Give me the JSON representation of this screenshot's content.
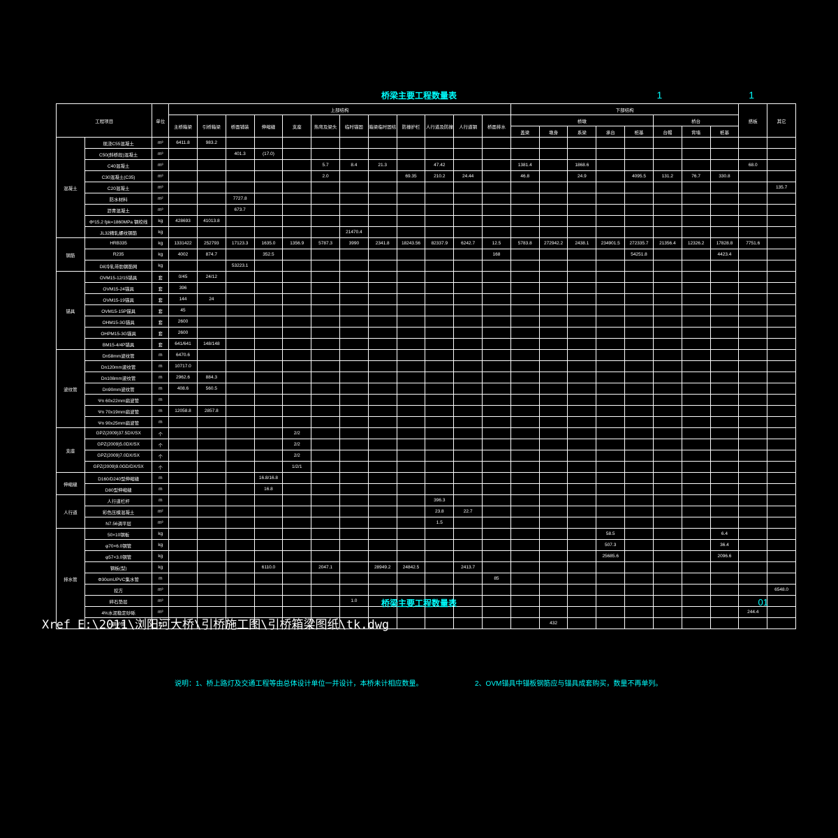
{
  "title": "桥梁主要工程数量表",
  "page_top": "1    1",
  "page_bottom": "01",
  "xref": "Xref E:\\2011\\浏阳河大桥\\引桥施工图\\引桥箱梁图纸\\tk.dwg",
  "note1": "说明：1、桥上路灯及交通工程等由总体设计单位一并设计，本桥未计相应数量。",
  "note2": "2、OVM锚具中锚板钢筋应与锚具成套购买，数量不再单列。",
  "headers": {
    "h_project": "工程项目",
    "h_unit": "单位",
    "h_upper": "上部结构",
    "h_lower": "下部结构",
    "h_deck": "搭板",
    "h_other": "其它",
    "h_pier": "桥墩",
    "h_abut": "桥台",
    "u1": "主桥箱梁",
    "u2": "引桥箱梁",
    "u3": "桥面铺装",
    "u4": "伸缩缝",
    "u5": "支座",
    "u6": "热弯及梁头",
    "u7": "临时锚固",
    "u8": "箱梁临时固结",
    "u9": "防撞护栏",
    "u10": "人行道及防撞",
    "u11": "人行道钢",
    "u12": "桥面排水",
    "l1": "盖梁",
    "l2": "墩身",
    "l3": "系梁",
    "l4": "承台",
    "l5": "桩基",
    "l6": "台帽",
    "l7": "背墙",
    "l8": "桩基"
  },
  "rows": [
    {
      "cat": "混凝土",
      "item": "现浇C55混凝土",
      "unit": "m³",
      "d": [
        "6411.8",
        "983.2",
        "",
        "",
        "",
        "",
        "",
        "",
        "",
        "",
        "",
        "",
        "",
        "",
        "",
        "",
        "",
        "",
        "",
        "",
        "",
        ""
      ]
    },
    {
      "cat": "",
      "item": "C50(斜桥段)混凝土",
      "unit": "m³",
      "d": [
        "",
        "",
        "401.3",
        "(17.0)",
        "",
        "",
        "",
        "",
        "",
        "",
        "",
        "",
        "",
        "",
        "",
        "",
        "",
        "",
        "",
        "",
        "",
        ""
      ]
    },
    {
      "cat": "",
      "item": "C40混凝土",
      "unit": "m³",
      "d": [
        "",
        "",
        "",
        "",
        "",
        "5.7",
        "8.4",
        "21.3",
        "",
        "47.42",
        "",
        "",
        "1381.4",
        "",
        "1868.6",
        "",
        "",
        "",
        "",
        "",
        "68.0",
        ""
      ]
    },
    {
      "cat": "",
      "item": "C30混凝土(C35)",
      "unit": "m³",
      "d": [
        "",
        "",
        "",
        "",
        "",
        "2.0",
        "",
        "",
        "69.35",
        "210.2",
        "24.44",
        "",
        "46.8",
        "",
        "24.9",
        "",
        "4095.5",
        "131.2",
        "76.7",
        "330.8",
        "",
        ""
      ]
    },
    {
      "cat": "",
      "item": "C20混凝土",
      "unit": "m³",
      "d": [
        "",
        "",
        "",
        "",
        "",
        "",
        "",
        "",
        "",
        "",
        "",
        "",
        "",
        "",
        "",
        "",
        "",
        "",
        "",
        "",
        "",
        "135.7"
      ]
    },
    {
      "cat": "",
      "item": "防水材料",
      "unit": "m²",
      "d": [
        "",
        "",
        "7727.8",
        "",
        "",
        "",
        "",
        "",
        "",
        "",
        "",
        "",
        "",
        "",
        "",
        "",
        "",
        "",
        "",
        "",
        "",
        ""
      ]
    },
    {
      "cat": "",
      "item": "沥青混凝土",
      "unit": "m³",
      "d": [
        "",
        "",
        "673.7",
        "",
        "",
        "",
        "",
        "",
        "",
        "",
        "",
        "",
        "",
        "",
        "",
        "",
        "",
        "",
        "",
        "",
        "",
        ""
      ]
    },
    {
      "cat": "",
      "item": "Φ³15.2 fpk=1860MPa 钢绞线",
      "unit": "kg",
      "d": [
        "428693",
        "41013.8",
        "",
        "",
        "",
        "",
        "",
        "",
        "",
        "",
        "",
        "",
        "",
        "",
        "",
        "",
        "",
        "",
        "",
        "",
        "",
        ""
      ]
    },
    {
      "cat": "",
      "item": "JL32精轧螺纹钢筋",
      "unit": "kg",
      "d": [
        "",
        "",
        "",
        "",
        "",
        "",
        "21470.4",
        "",
        "",
        "",
        "",
        "",
        "",
        "",
        "",
        "",
        "",
        "",
        "",
        "",
        "",
        ""
      ]
    },
    {
      "cat": "钢筋",
      "item": "HRB335",
      "unit": "kg",
      "d": [
        "1331422",
        "252793",
        "17123.3",
        "1635.0",
        "1356.9",
        "5787.3",
        "3990",
        "2341.8",
        "18243.56",
        "82337.9",
        "6242.7",
        "12.5",
        "5783.8",
        "272942.2",
        "2438.1",
        "234901.5",
        "272335.7",
        "21356.4",
        "12326.2",
        "17828.8",
        "7751.6",
        ""
      ]
    },
    {
      "cat": "",
      "item": "R235",
      "unit": "kg",
      "d": [
        "4002",
        "874.7",
        "",
        "352.5",
        "",
        "",
        "",
        "",
        "",
        "",
        "",
        "168",
        "",
        "",
        "",
        "",
        "54251.8",
        "",
        "",
        "4423.4",
        "",
        ""
      ]
    },
    {
      "cat": "",
      "item": "D8冷轧带肋钢筋网",
      "unit": "kg",
      "d": [
        "",
        "",
        "53223.1",
        "",
        "",
        "",
        "",
        "",
        "",
        "",
        "",
        "",
        "",
        "",
        "",
        "",
        "",
        "",
        "",
        "",
        "",
        ""
      ]
    },
    {
      "cat": "锚具",
      "item": "OVM15-12/15锚具",
      "unit": "套",
      "d": [
        "0/45",
        "24/12",
        "",
        "",
        "",
        "",
        "",
        "",
        "",
        "",
        "",
        "",
        "",
        "",
        "",
        "",
        "",
        "",
        "",
        "",
        "",
        ""
      ]
    },
    {
      "cat": "",
      "item": "OVM15-24锚具",
      "unit": "套",
      "d": [
        "396",
        "",
        "",
        "",
        "",
        "",
        "",
        "",
        "",
        "",
        "",
        "",
        "",
        "",
        "",
        "",
        "",
        "",
        "",
        "",
        "",
        ""
      ]
    },
    {
      "cat": "",
      "item": "OVM15-19锚具",
      "unit": "套",
      "d": [
        "144",
        "24",
        "",
        "",
        "",
        "",
        "",
        "",
        "",
        "",
        "",
        "",
        "",
        "",
        "",
        "",
        "",
        "",
        "",
        "",
        "",
        ""
      ]
    },
    {
      "cat": "",
      "item": "OVM15-15P锚具",
      "unit": "套",
      "d": [
        "45",
        "",
        "",
        "",
        "",
        "",
        "",
        "",
        "",
        "",
        "",
        "",
        "",
        "",
        "",
        "",
        "",
        "",
        "",
        "",
        "",
        ""
      ]
    },
    {
      "cat": "",
      "item": "OHM15-3G锚具",
      "unit": "套",
      "d": [
        "2600",
        "",
        "",
        "",
        "",
        "",
        "",
        "",
        "",
        "",
        "",
        "",
        "",
        "",
        "",
        "",
        "",
        "",
        "",
        "",
        "",
        ""
      ]
    },
    {
      "cat": "",
      "item": "OHPM15-3G锚具",
      "unit": "套",
      "d": [
        "2600",
        "",
        "",
        "",
        "",
        "",
        "",
        "",
        "",
        "",
        "",
        "",
        "",
        "",
        "",
        "",
        "",
        "",
        "",
        "",
        "",
        ""
      ]
    },
    {
      "cat": "",
      "item": "BM15-4/4P锚具",
      "unit": "套",
      "d": [
        "641/641",
        "148/148",
        "",
        "",
        "",
        "",
        "",
        "",
        "",
        "",
        "",
        "",
        "",
        "",
        "",
        "",
        "",
        "",
        "",
        "",
        "",
        ""
      ]
    },
    {
      "cat": "波纹管",
      "item": "Dn58mm波纹管",
      "unit": "m",
      "d": [
        "6470.6",
        "",
        "",
        "",
        "",
        "",
        "",
        "",
        "",
        "",
        "",
        "",
        "",
        "",
        "",
        "",
        "",
        "",
        "",
        "",
        "",
        ""
      ]
    },
    {
      "cat": "",
      "item": "Dn120mm波纹管",
      "unit": "m",
      "d": [
        "10717.0",
        "",
        "",
        "",
        "",
        "",
        "",
        "",
        "",
        "",
        "",
        "",
        "",
        "",
        "",
        "",
        "",
        "",
        "",
        "",
        "",
        ""
      ]
    },
    {
      "cat": "",
      "item": "Dn108mm波纹管",
      "unit": "m",
      "d": [
        "2962.6",
        "884.3",
        "",
        "",
        "",
        "",
        "",
        "",
        "",
        "",
        "",
        "",
        "",
        "",
        "",
        "",
        "",
        "",
        "",
        "",
        "",
        ""
      ]
    },
    {
      "cat": "",
      "item": "Dn90mm波纹管",
      "unit": "m",
      "d": [
        "408.6",
        "560.5",
        "",
        "",
        "",
        "",
        "",
        "",
        "",
        "",
        "",
        "",
        "",
        "",
        "",
        "",
        "",
        "",
        "",
        "",
        "",
        ""
      ]
    },
    {
      "cat": "",
      "item": "Ψn 60x22mm扁波管",
      "unit": "m",
      "d": [
        "",
        "",
        "",
        "",
        "",
        "",
        "",
        "",
        "",
        "",
        "",
        "",
        "",
        "",
        "",
        "",
        "",
        "",
        "",
        "",
        "",
        ""
      ]
    },
    {
      "cat": "",
      "item": "Ψn 70x19mm扁波管",
      "unit": "m",
      "d": [
        "12058.8",
        "2857.8",
        "",
        "",
        "",
        "",
        "",
        "",
        "",
        "",
        "",
        "",
        "",
        "",
        "",
        "",
        "",
        "",
        "",
        "",
        "",
        ""
      ]
    },
    {
      "cat": "",
      "item": "Ψn 90x25mm扁波管",
      "unit": "m",
      "d": [
        "",
        "",
        "",
        "",
        "",
        "",
        "",
        "",
        "",
        "",
        "",
        "",
        "",
        "",
        "",
        "",
        "",
        "",
        "",
        "",
        "",
        ""
      ]
    },
    {
      "cat": "支座",
      "item": "GPZ(2009)37.5DX/SX",
      "unit": "个",
      "d": [
        "",
        "",
        "",
        "",
        "2/2",
        "",
        "",
        "",
        "",
        "",
        "",
        "",
        "",
        "",
        "",
        "",
        "",
        "",
        "",
        "",
        "",
        ""
      ]
    },
    {
      "cat": "",
      "item": "GPZ(2009)5.0DX/SX",
      "unit": "个",
      "d": [
        "",
        "",
        "",
        "",
        "2/2",
        "",
        "",
        "",
        "",
        "",
        "",
        "",
        "",
        "",
        "",
        "",
        "",
        "",
        "",
        "",
        "",
        ""
      ]
    },
    {
      "cat": "",
      "item": "GPZ(2009)7.0DX/SX",
      "unit": "个",
      "d": [
        "",
        "",
        "",
        "",
        "2/2",
        "",
        "",
        "",
        "",
        "",
        "",
        "",
        "",
        "",
        "",
        "",
        "",
        "",
        "",
        "",
        "",
        ""
      ]
    },
    {
      "cat": "",
      "item": "GPZ(2009)9.0GD/DX/SX",
      "unit": "个",
      "d": [
        "",
        "",
        "",
        "",
        "1/2/1",
        "",
        "",
        "",
        "",
        "",
        "",
        "",
        "",
        "",
        "",
        "",
        "",
        "",
        "",
        "",
        "",
        ""
      ]
    },
    {
      "cat": "伸缩缝",
      "item": "D160/D240型伸缩缝",
      "unit": "m",
      "d": [
        "",
        "",
        "",
        "16.8/16.8",
        "",
        "",
        "",
        "",
        "",
        "",
        "",
        "",
        "",
        "",
        "",
        "",
        "",
        "",
        "",
        "",
        "",
        ""
      ]
    },
    {
      "cat": "",
      "item": "D80型伸缩缝",
      "unit": "m",
      "d": [
        "",
        "",
        "",
        "16.8",
        "",
        "",
        "",
        "",
        "",
        "",
        "",
        "",
        "",
        "",
        "",
        "",
        "",
        "",
        "",
        "",
        "",
        ""
      ]
    },
    {
      "cat": "人行道",
      "item": "人行道栏杆",
      "unit": "m",
      "d": [
        "",
        "",
        "",
        "",
        "",
        "",
        "",
        "",
        "",
        "396.3",
        "",
        "",
        "",
        "",
        "",
        "",
        "",
        "",
        "",
        "",
        "",
        ""
      ]
    },
    {
      "cat": "",
      "item": "彩色压模混凝土",
      "unit": "m²",
      "d": [
        "",
        "",
        "",
        "",
        "",
        "",
        "",
        "",
        "",
        "23.8",
        "22.7",
        "",
        "",
        "",
        "",
        "",
        "",
        "",
        "",
        "",
        "",
        ""
      ]
    },
    {
      "cat": "",
      "item": "N7.56调平层",
      "unit": "m³",
      "d": [
        "",
        "",
        "",
        "",
        "",
        "",
        "",
        "",
        "",
        "1.5",
        "",
        "",
        "",
        "",
        "",
        "",
        "",
        "",
        "",
        "",
        "",
        ""
      ]
    },
    {
      "cat": "排水管",
      "item": "50×10钢板",
      "unit": "kg",
      "d": [
        "",
        "",
        "",
        "",
        "",
        "",
        "",
        "",
        "",
        "",
        "",
        "",
        "",
        "",
        "",
        "58.5",
        "",
        "",
        "",
        "6.4",
        "",
        ""
      ]
    },
    {
      "cat": "",
      "item": "φ70×6.0钢管",
      "unit": "kg",
      "d": [
        "",
        "",
        "",
        "",
        "",
        "",
        "",
        "",
        "",
        "",
        "",
        "",
        "",
        "",
        "",
        "507.3",
        "",
        "",
        "",
        "36.4",
        "",
        ""
      ]
    },
    {
      "cat": "",
      "item": "φ57×3.0钢管",
      "unit": "kg",
      "d": [
        "",
        "",
        "",
        "",
        "",
        "",
        "",
        "",
        "",
        "",
        "",
        "",
        "",
        "",
        "",
        "25685.6",
        "",
        "",
        "",
        "2096.6",
        "",
        ""
      ]
    },
    {
      "cat": "",
      "item": "钢板(型)",
      "unit": "kg",
      "d": [
        "",
        "",
        "",
        "6110.0",
        "",
        "2047.1",
        "",
        "28949.2",
        "24842.5",
        "",
        "2413.7",
        "",
        "",
        "",
        "",
        "",
        "",
        "",
        "",
        "",
        "",
        ""
      ]
    },
    {
      "cat": "",
      "item": "Φ30cmUPVC集水管",
      "unit": "m",
      "d": [
        "",
        "",
        "",
        "",
        "",
        "",
        "",
        "",
        "",
        "",
        "",
        "85",
        "",
        "",
        "",
        "",
        "",
        "",
        "",
        "",
        "",
        ""
      ]
    },
    {
      "cat": "",
      "item": "挖方",
      "unit": "m³",
      "d": [
        "",
        "",
        "",
        "",
        "",
        "",
        "",
        "",
        "",
        "",
        "",
        "",
        "",
        "",
        "",
        "",
        "",
        "",
        "",
        "",
        "",
        "6548.0"
      ]
    },
    {
      "cat": "",
      "item": "碎石垫层",
      "unit": "m³",
      "d": [
        "",
        "",
        "",
        "",
        "",
        "",
        "1.0",
        "",
        "",
        "",
        "",
        "",
        "",
        "",
        "",
        "",
        "",
        "",
        "",
        "",
        "",
        ""
      ]
    },
    {
      "cat": "",
      "item": "4%水泥稳定砂砾",
      "unit": "m³",
      "d": [
        "",
        "",
        "",
        "",
        "",
        "",
        "",
        "",
        "",
        "",
        "",
        "",
        "",
        "",
        "",
        "",
        "",
        "",
        "",
        "",
        "244.4",
        ""
      ]
    },
    {
      "cat": "",
      "item": "钢护筒",
      "unit": "套",
      "d": [
        "",
        "",
        "",
        "",
        "",
        "",
        "",
        "",
        "",
        "",
        "",
        "",
        "",
        "432",
        "",
        "",
        "",
        "",
        "",
        "",
        "",
        ""
      ]
    }
  ]
}
